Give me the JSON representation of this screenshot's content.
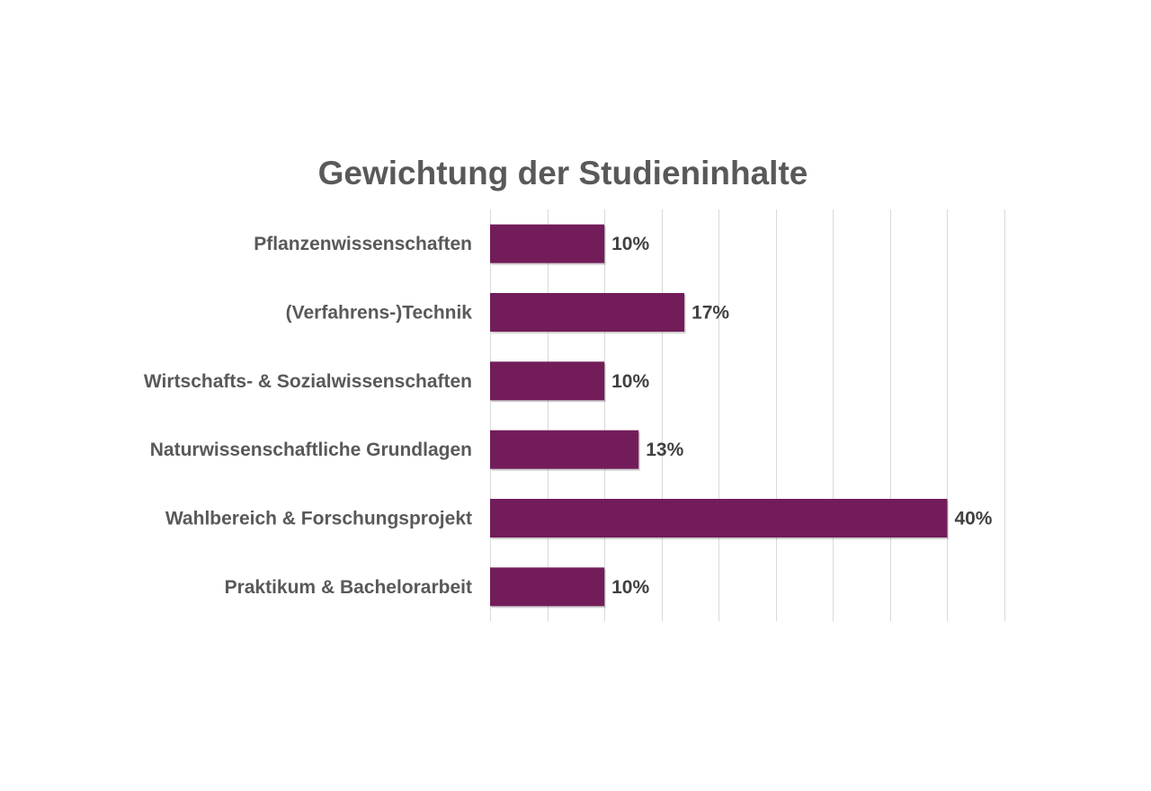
{
  "chart_data": {
    "type": "bar",
    "orientation": "horizontal",
    "title": "Gewichtung der Studieninhalte",
    "xlabel": "",
    "ylabel": "",
    "categories": [
      "Pflanzenwissenschaften",
      "(Verfahrens-)Technik",
      "Wirtschafts- & Sozialwissenschaften",
      "Naturwissenschaftliche Grundlagen",
      "Wahlbereich & Forschungsprojekt",
      "Praktikum & Bachelorarbeit"
    ],
    "values": [
      10,
      17,
      10,
      13,
      40,
      10
    ],
    "data_labels": [
      "10%",
      "17%",
      "10%",
      "13%",
      "40%",
      "10%"
    ],
    "unit": "%",
    "xlim": [
      0,
      45
    ],
    "grid": true,
    "grid_step": 5,
    "legend": "none",
    "colors": {
      "bar": "#731c5a",
      "title": "#595959",
      "category_label": "#595959",
      "data_label": "#404040",
      "grid": "#d9d9d9"
    }
  }
}
